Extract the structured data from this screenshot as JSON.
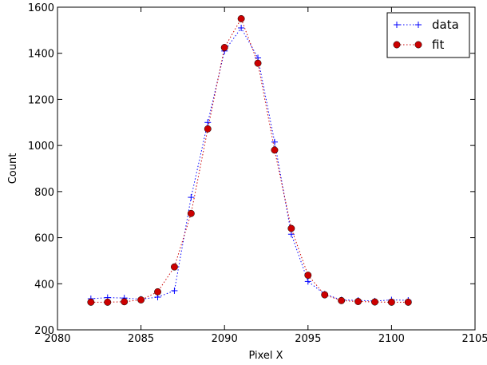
{
  "chart_data": {
    "type": "line",
    "title": "",
    "xlabel": "Pixel X",
    "ylabel": "Count",
    "xlim": [
      2080,
      2105
    ],
    "ylim": [
      200,
      1600
    ],
    "xticks": [
      "2080",
      "2085",
      "2090",
      "2095",
      "2100",
      "2105"
    ],
    "yticks": [
      "200",
      "400",
      "600",
      "800",
      "1000",
      "1200",
      "1400",
      "1600"
    ],
    "x": [
      2082,
      2083,
      2084,
      2085,
      2086,
      2087,
      2088,
      2089,
      2090,
      2091,
      2092,
      2093,
      2094,
      2095,
      2096,
      2097,
      2098,
      2099,
      2100,
      2101
    ],
    "series": [
      {
        "name": "data",
        "color": "#0000ff",
        "marker": "plus",
        "linestyle": "dotted",
        "values": [
          335,
          340,
          338,
          333,
          342,
          370,
          775,
          1100,
          1410,
          1510,
          1380,
          1015,
          615,
          410,
          355,
          330,
          328,
          325,
          330,
          328
        ]
      },
      {
        "name": "fit",
        "color": "#cc0000",
        "marker": "circle",
        "linestyle": "dotted",
        "values": [
          320,
          320,
          322,
          330,
          365,
          473,
          705,
          1072,
          1425,
          1550,
          1357,
          980,
          640,
          437,
          352,
          327,
          323,
          321,
          320,
          320
        ]
      }
    ],
    "grid": false,
    "legend_position": "top-right"
  }
}
